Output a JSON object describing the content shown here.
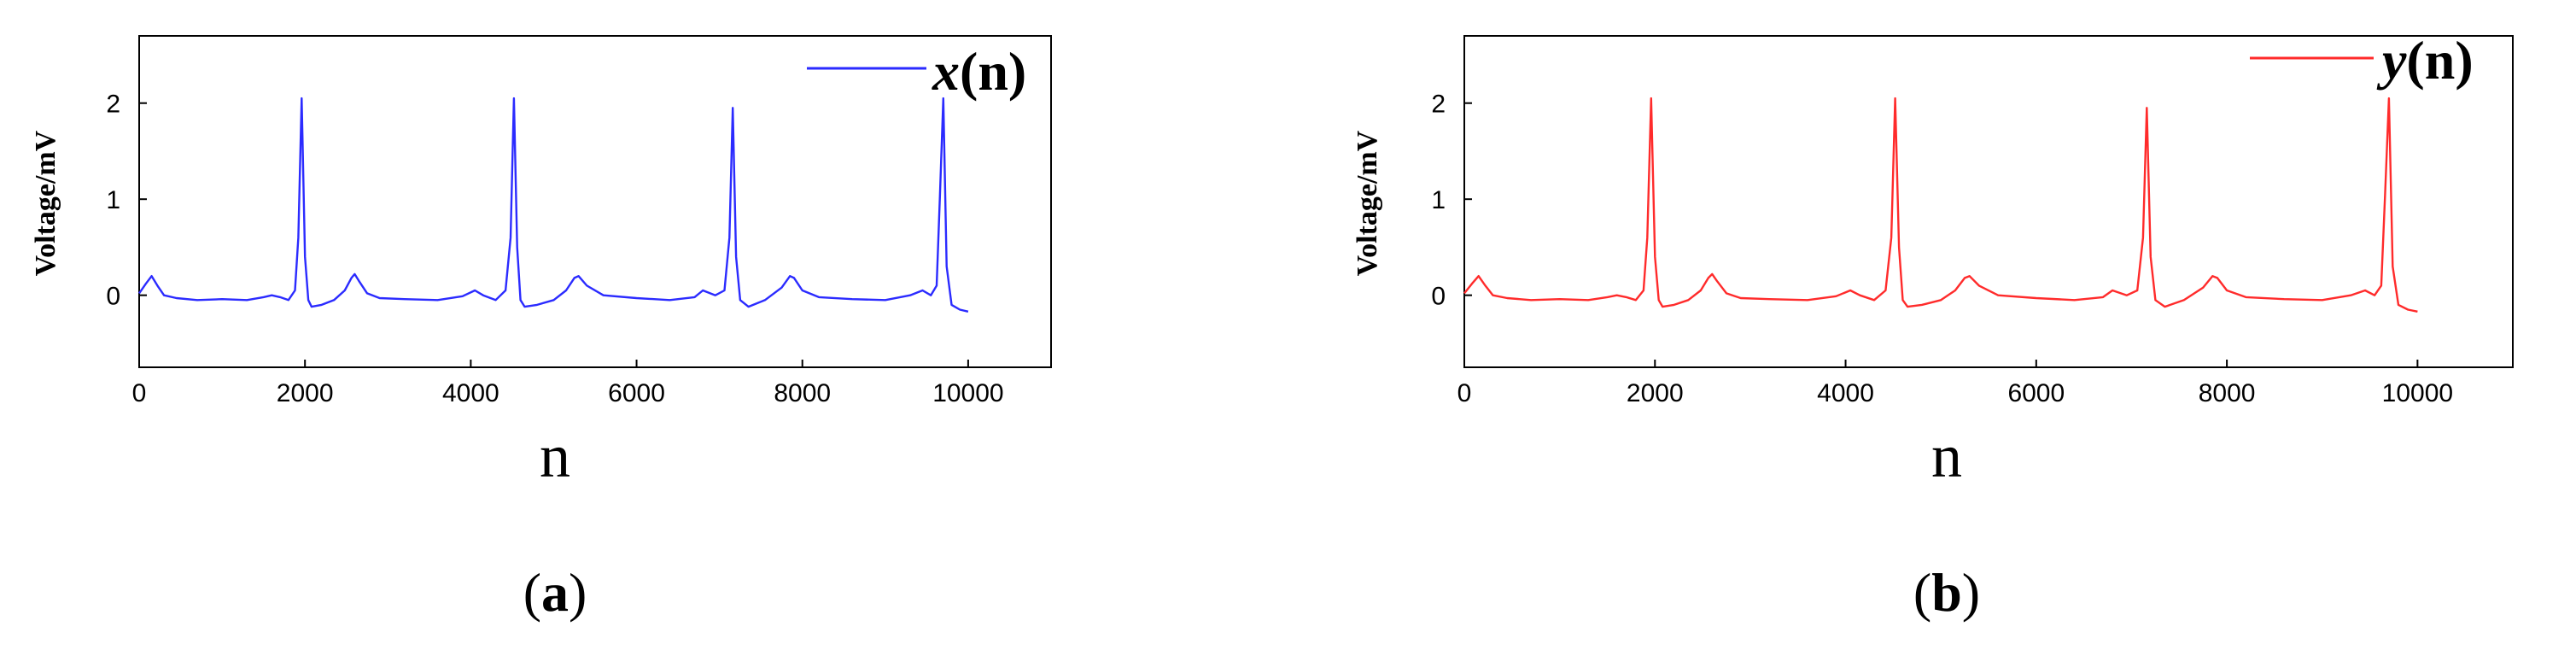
{
  "chart_data": [
    {
      "type": "line",
      "panel": "a",
      "caption": {
        "open": "(",
        "letter": "a",
        "close": ")"
      },
      "xlabel": "n",
      "ylabel": "Voltage/mV",
      "xlim": [
        0,
        11000
      ],
      "ylim": [
        -0.75,
        2.7
      ],
      "xticks": [
        0,
        2000,
        4000,
        6000,
        8000,
        10000
      ],
      "yticks": [
        0,
        1,
        2
      ],
      "grid": false,
      "legend": {
        "position": "top-right",
        "entries": [
          {
            "var": "x",
            "paren": "(n)",
            "color": "#2b2bff"
          }
        ]
      },
      "series": [
        {
          "name": "x(n)",
          "color": "#2b2bff",
          "x": [
            0,
            80,
            150,
            220,
            300,
            450,
            700,
            1000,
            1300,
            1500,
            1600,
            1700,
            1800,
            1880,
            1920,
            1960,
            2000,
            2040,
            2080,
            2200,
            2350,
            2480,
            2560,
            2600,
            2650,
            2750,
            2900,
            3200,
            3600,
            3900,
            4050,
            4150,
            4300,
            4420,
            4480,
            4520,
            4560,
            4600,
            4650,
            4800,
            5000,
            5150,
            5250,
            5300,
            5400,
            5600,
            6000,
            6400,
            6700,
            6800,
            6950,
            7060,
            7120,
            7160,
            7200,
            7250,
            7350,
            7550,
            7750,
            7850,
            7900,
            8000,
            8200,
            8600,
            9000,
            9300,
            9450,
            9550,
            9620,
            9660,
            9700,
            9740,
            9800,
            9900,
            10000
          ],
          "values": [
            0.02,
            0.12,
            0.2,
            0.1,
            0.0,
            -0.03,
            -0.05,
            -0.04,
            -0.05,
            -0.02,
            0.0,
            -0.02,
            -0.05,
            0.05,
            0.6,
            2.05,
            0.4,
            -0.05,
            -0.12,
            -0.1,
            -0.05,
            0.05,
            0.18,
            0.22,
            0.15,
            0.02,
            -0.03,
            -0.04,
            -0.05,
            -0.01,
            0.05,
            0.0,
            -0.05,
            0.05,
            0.6,
            2.05,
            0.5,
            -0.05,
            -0.12,
            -0.1,
            -0.05,
            0.05,
            0.18,
            0.2,
            0.1,
            0.0,
            -0.03,
            -0.05,
            -0.02,
            0.05,
            0.0,
            0.05,
            0.6,
            1.95,
            0.4,
            -0.05,
            -0.12,
            -0.05,
            0.08,
            0.2,
            0.18,
            0.05,
            -0.02,
            -0.04,
            -0.05,
            0.0,
            0.05,
            0.0,
            0.1,
            1.05,
            2.05,
            0.3,
            -0.1,
            -0.15,
            -0.17
          ]
        }
      ]
    },
    {
      "type": "line",
      "panel": "b",
      "caption": {
        "open": "(",
        "letter": "b",
        "close": ")"
      },
      "xlabel": "n",
      "ylabel": "Voltage/mV",
      "xlim": [
        0,
        11000
      ],
      "ylim": [
        -0.75,
        2.7
      ],
      "xticks": [
        0,
        2000,
        4000,
        6000,
        8000,
        10000
      ],
      "yticks": [
        0,
        1,
        2
      ],
      "grid": false,
      "legend": {
        "position": "top-right",
        "entries": [
          {
            "var": "y",
            "paren": "(n)",
            "color": "#ff2b2b"
          }
        ]
      },
      "series": [
        {
          "name": "y(n)",
          "color": "#ff2b2b",
          "x": [
            0,
            80,
            150,
            220,
            300,
            450,
            700,
            1000,
            1300,
            1500,
            1600,
            1700,
            1800,
            1880,
            1920,
            1960,
            2000,
            2040,
            2080,
            2200,
            2350,
            2480,
            2560,
            2600,
            2650,
            2750,
            2900,
            3200,
            3600,
            3900,
            4050,
            4150,
            4300,
            4420,
            4480,
            4520,
            4560,
            4600,
            4650,
            4800,
            5000,
            5150,
            5250,
            5300,
            5400,
            5600,
            6000,
            6400,
            6700,
            6800,
            6950,
            7060,
            7120,
            7160,
            7200,
            7250,
            7350,
            7550,
            7750,
            7850,
            7900,
            8000,
            8200,
            8600,
            9000,
            9300,
            9450,
            9550,
            9620,
            9660,
            9700,
            9740,
            9800,
            9900,
            10000
          ],
          "values": [
            0.02,
            0.12,
            0.2,
            0.1,
            0.0,
            -0.03,
            -0.05,
            -0.04,
            -0.05,
            -0.02,
            0.0,
            -0.02,
            -0.05,
            0.05,
            0.6,
            2.05,
            0.4,
            -0.05,
            -0.12,
            -0.1,
            -0.05,
            0.05,
            0.18,
            0.22,
            0.15,
            0.02,
            -0.03,
            -0.04,
            -0.05,
            -0.01,
            0.05,
            0.0,
            -0.05,
            0.05,
            0.6,
            2.05,
            0.5,
            -0.05,
            -0.12,
            -0.1,
            -0.05,
            0.05,
            0.18,
            0.2,
            0.1,
            0.0,
            -0.03,
            -0.05,
            -0.02,
            0.05,
            0.0,
            0.05,
            0.6,
            1.95,
            0.4,
            -0.05,
            -0.12,
            -0.05,
            0.08,
            0.2,
            0.18,
            0.05,
            -0.02,
            -0.04,
            -0.05,
            0.0,
            0.05,
            0.0,
            0.1,
            1.05,
            2.05,
            0.3,
            -0.1,
            -0.15,
            -0.17
          ]
        }
      ]
    }
  ]
}
